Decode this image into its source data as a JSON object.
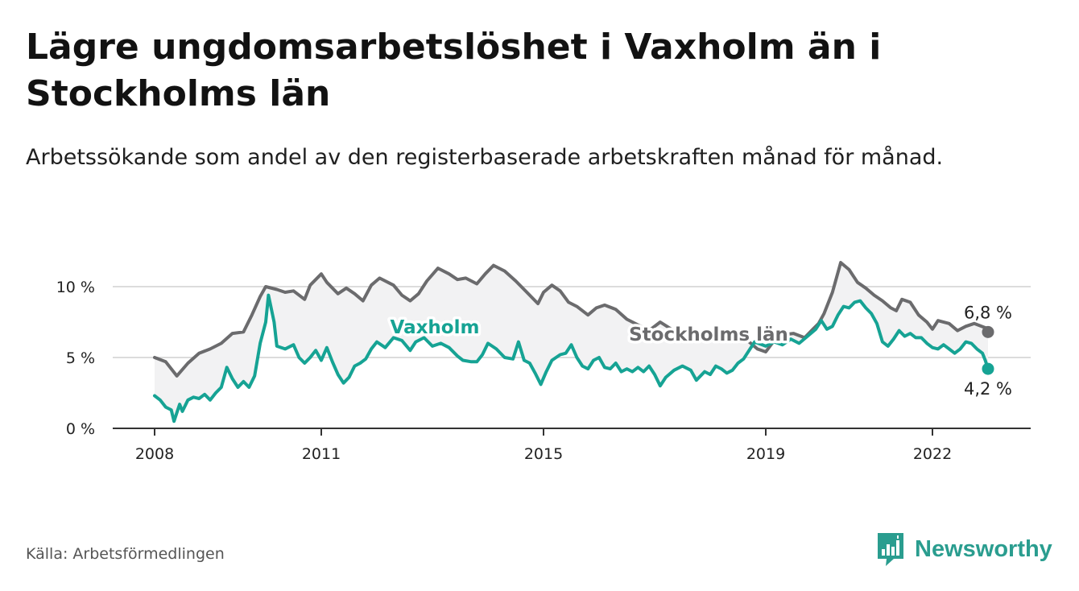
{
  "title": "Lägre ungdomsarbetslöshet i Vaxholm än i Stockholms län",
  "subtitle": "Arbetssökande som andel av den registerbaserade arbetskraften månad för månad.",
  "source": "Källa: Arbetsförmedlingen",
  "brand": "Newsworthy",
  "colors": {
    "vaxholm": "#16a394",
    "stockholm": "#6b6b6d",
    "band": "#f2f2f3",
    "grid": "#dcdcdc",
    "axis": "#333333"
  },
  "chart_data": {
    "type": "line",
    "title": "Lägre ungdomsarbetslöshet i Vaxholm än i Stockholms län",
    "xlabel": "",
    "ylabel": "",
    "ylim": [
      0,
      12
    ],
    "xlim": [
      2007.5,
      2023.2
    ],
    "yticks": [
      0,
      5,
      10
    ],
    "ytick_labels": [
      "0 %",
      "5 %",
      "10 %"
    ],
    "xticks": [
      2008,
      2011,
      2015,
      2019,
      2022
    ],
    "xtick_labels": [
      "2008",
      "2011",
      "2015",
      "2019",
      "2022"
    ],
    "end_labels": {
      "stockholm": "6,8 %",
      "vaxholm": "4,2 %"
    },
    "series": [
      {
        "key": "stockholm",
        "name": "Stockholms län",
        "points": [
          [
            2008.0,
            5.0
          ],
          [
            2008.2,
            4.7
          ],
          [
            2008.4,
            3.7
          ],
          [
            2008.6,
            4.6
          ],
          [
            2008.8,
            5.3
          ],
          [
            2009.0,
            5.6
          ],
          [
            2009.2,
            6.0
          ],
          [
            2009.4,
            6.7
          ],
          [
            2009.6,
            6.8
          ],
          [
            2009.75,
            8.0
          ],
          [
            2009.9,
            9.3
          ],
          [
            2010.0,
            10.0
          ],
          [
            2010.2,
            9.8
          ],
          [
            2010.35,
            9.6
          ],
          [
            2010.5,
            9.7
          ],
          [
            2010.7,
            9.1
          ],
          [
            2010.8,
            10.1
          ],
          [
            2011.0,
            10.9
          ],
          [
            2011.1,
            10.3
          ],
          [
            2011.3,
            9.5
          ],
          [
            2011.45,
            9.9
          ],
          [
            2011.6,
            9.5
          ],
          [
            2011.75,
            9.0
          ],
          [
            2011.9,
            10.1
          ],
          [
            2012.05,
            10.6
          ],
          [
            2012.3,
            10.1
          ],
          [
            2012.45,
            9.4
          ],
          [
            2012.6,
            9.0
          ],
          [
            2012.75,
            9.5
          ],
          [
            2012.9,
            10.4
          ],
          [
            2013.1,
            11.3
          ],
          [
            2013.3,
            10.9
          ],
          [
            2013.45,
            10.5
          ],
          [
            2013.6,
            10.6
          ],
          [
            2013.8,
            10.2
          ],
          [
            2013.95,
            10.9
          ],
          [
            2014.1,
            11.5
          ],
          [
            2014.3,
            11.1
          ],
          [
            2014.5,
            10.4
          ],
          [
            2014.7,
            9.6
          ],
          [
            2014.9,
            8.8
          ],
          [
            2015.0,
            9.6
          ],
          [
            2015.15,
            10.1
          ],
          [
            2015.3,
            9.7
          ],
          [
            2015.45,
            8.9
          ],
          [
            2015.6,
            8.6
          ],
          [
            2015.8,
            8.0
          ],
          [
            2015.95,
            8.5
          ],
          [
            2016.1,
            8.7
          ],
          [
            2016.3,
            8.4
          ],
          [
            2016.5,
            7.7
          ],
          [
            2016.7,
            7.3
          ],
          [
            2016.9,
            6.9
          ],
          [
            2017.1,
            7.5
          ],
          [
            2017.3,
            7.0
          ],
          [
            2017.5,
            6.8
          ],
          [
            2017.7,
            6.9
          ],
          [
            2017.9,
            6.5
          ],
          [
            2018.1,
            6.7
          ],
          [
            2018.3,
            6.9
          ],
          [
            2018.5,
            6.5
          ],
          [
            2018.7,
            6.1
          ],
          [
            2018.85,
            5.6
          ],
          [
            2019.0,
            5.4
          ],
          [
            2019.15,
            6.2
          ],
          [
            2019.3,
            6.6
          ],
          [
            2019.5,
            6.7
          ],
          [
            2019.7,
            6.4
          ],
          [
            2019.85,
            7.0
          ],
          [
            2019.95,
            7.4
          ],
          [
            2020.05,
            8.1
          ],
          [
            2020.2,
            9.6
          ],
          [
            2020.35,
            11.7
          ],
          [
            2020.5,
            11.2
          ],
          [
            2020.65,
            10.3
          ],
          [
            2020.8,
            9.9
          ],
          [
            2020.95,
            9.4
          ],
          [
            2021.1,
            9.0
          ],
          [
            2021.25,
            8.5
          ],
          [
            2021.35,
            8.3
          ],
          [
            2021.45,
            9.1
          ],
          [
            2021.6,
            8.9
          ],
          [
            2021.75,
            8.0
          ],
          [
            2021.9,
            7.5
          ],
          [
            2022.0,
            7.0
          ],
          [
            2022.1,
            7.6
          ],
          [
            2022.3,
            7.4
          ],
          [
            2022.45,
            6.9
          ],
          [
            2022.6,
            7.2
          ],
          [
            2022.75,
            7.4
          ],
          [
            2022.95,
            7.1
          ],
          [
            2023.0,
            6.8
          ]
        ]
      },
      {
        "key": "vaxholm",
        "name": "Vaxholm",
        "points": [
          [
            2008.0,
            2.3
          ],
          [
            2008.1,
            2.0
          ],
          [
            2008.2,
            1.5
          ],
          [
            2008.3,
            1.3
          ],
          [
            2008.35,
            0.5
          ],
          [
            2008.45,
            1.7
          ],
          [
            2008.5,
            1.2
          ],
          [
            2008.6,
            2.0
          ],
          [
            2008.7,
            2.2
          ],
          [
            2008.8,
            2.1
          ],
          [
            2008.9,
            2.4
          ],
          [
            2009.0,
            2.0
          ],
          [
            2009.1,
            2.5
          ],
          [
            2009.2,
            2.9
          ],
          [
            2009.3,
            4.3
          ],
          [
            2009.4,
            3.5
          ],
          [
            2009.5,
            2.9
          ],
          [
            2009.6,
            3.3
          ],
          [
            2009.7,
            2.9
          ],
          [
            2009.8,
            3.7
          ],
          [
            2009.9,
            6.0
          ],
          [
            2010.0,
            7.5
          ],
          [
            2010.05,
            9.4
          ],
          [
            2010.15,
            7.5
          ],
          [
            2010.2,
            5.8
          ],
          [
            2010.35,
            5.6
          ],
          [
            2010.5,
            5.9
          ],
          [
            2010.6,
            5.0
          ],
          [
            2010.7,
            4.6
          ],
          [
            2010.8,
            5.0
          ],
          [
            2010.9,
            5.5
          ],
          [
            2011.0,
            4.8
          ],
          [
            2011.1,
            5.7
          ],
          [
            2011.2,
            4.7
          ],
          [
            2011.3,
            3.8
          ],
          [
            2011.4,
            3.2
          ],
          [
            2011.5,
            3.6
          ],
          [
            2011.6,
            4.4
          ],
          [
            2011.7,
            4.6
          ],
          [
            2011.8,
            4.9
          ],
          [
            2011.9,
            5.6
          ],
          [
            2012.0,
            6.1
          ],
          [
            2012.15,
            5.7
          ],
          [
            2012.3,
            6.4
          ],
          [
            2012.45,
            6.2
          ],
          [
            2012.6,
            5.5
          ],
          [
            2012.7,
            6.1
          ],
          [
            2012.85,
            6.4
          ],
          [
            2013.0,
            5.8
          ],
          [
            2013.15,
            6.0
          ],
          [
            2013.3,
            5.7
          ],
          [
            2013.45,
            5.1
          ],
          [
            2013.55,
            4.8
          ],
          [
            2013.7,
            4.7
          ],
          [
            2013.8,
            4.7
          ],
          [
            2013.9,
            5.2
          ],
          [
            2014.0,
            6.0
          ],
          [
            2014.15,
            5.6
          ],
          [
            2014.3,
            5.0
          ],
          [
            2014.45,
            4.9
          ],
          [
            2014.55,
            6.1
          ],
          [
            2014.65,
            4.8
          ],
          [
            2014.75,
            4.6
          ],
          [
            2014.85,
            3.9
          ],
          [
            2014.95,
            3.1
          ],
          [
            2015.05,
            4.0
          ],
          [
            2015.15,
            4.8
          ],
          [
            2015.3,
            5.2
          ],
          [
            2015.4,
            5.3
          ],
          [
            2015.5,
            5.9
          ],
          [
            2015.6,
            5.0
          ],
          [
            2015.7,
            4.4
          ],
          [
            2015.8,
            4.2
          ],
          [
            2015.9,
            4.8
          ],
          [
            2016.0,
            5.0
          ],
          [
            2016.1,
            4.3
          ],
          [
            2016.2,
            4.2
          ],
          [
            2016.3,
            4.6
          ],
          [
            2016.4,
            4.0
          ],
          [
            2016.5,
            4.2
          ],
          [
            2016.6,
            4.0
          ],
          [
            2016.7,
            4.3
          ],
          [
            2016.8,
            4.0
          ],
          [
            2016.9,
            4.4
          ],
          [
            2017.0,
            3.8
          ],
          [
            2017.1,
            3.0
          ],
          [
            2017.2,
            3.6
          ],
          [
            2017.35,
            4.1
          ],
          [
            2017.5,
            4.4
          ],
          [
            2017.65,
            4.1
          ],
          [
            2017.75,
            3.4
          ],
          [
            2017.9,
            4.0
          ],
          [
            2018.0,
            3.8
          ],
          [
            2018.1,
            4.4
          ],
          [
            2018.2,
            4.2
          ],
          [
            2018.3,
            3.9
          ],
          [
            2018.4,
            4.1
          ],
          [
            2018.5,
            4.6
          ],
          [
            2018.6,
            4.9
          ],
          [
            2018.7,
            5.5
          ],
          [
            2018.8,
            6.1
          ],
          [
            2019.0,
            5.8
          ],
          [
            2019.15,
            6.1
          ],
          [
            2019.3,
            5.9
          ],
          [
            2019.45,
            6.3
          ],
          [
            2019.6,
            6.0
          ],
          [
            2019.75,
            6.5
          ],
          [
            2019.9,
            7.0
          ],
          [
            2020.0,
            7.6
          ],
          [
            2020.1,
            7.0
          ],
          [
            2020.2,
            7.2
          ],
          [
            2020.3,
            8.0
          ],
          [
            2020.4,
            8.6
          ],
          [
            2020.5,
            8.5
          ],
          [
            2020.6,
            8.9
          ],
          [
            2020.7,
            9.0
          ],
          [
            2020.8,
            8.5
          ],
          [
            2020.9,
            8.1
          ],
          [
            2021.0,
            7.4
          ],
          [
            2021.1,
            6.1
          ],
          [
            2021.2,
            5.8
          ],
          [
            2021.3,
            6.3
          ],
          [
            2021.4,
            6.9
          ],
          [
            2021.5,
            6.5
          ],
          [
            2021.6,
            6.7
          ],
          [
            2021.7,
            6.4
          ],
          [
            2021.8,
            6.4
          ],
          [
            2021.9,
            6.0
          ],
          [
            2022.0,
            5.7
          ],
          [
            2022.1,
            5.6
          ],
          [
            2022.2,
            5.9
          ],
          [
            2022.3,
            5.6
          ],
          [
            2022.4,
            5.3
          ],
          [
            2022.5,
            5.6
          ],
          [
            2022.6,
            6.1
          ],
          [
            2022.7,
            6.0
          ],
          [
            2022.8,
            5.6
          ],
          [
            2022.9,
            5.3
          ],
          [
            2022.95,
            4.8
          ],
          [
            2023.0,
            4.2
          ]
        ]
      }
    ]
  }
}
